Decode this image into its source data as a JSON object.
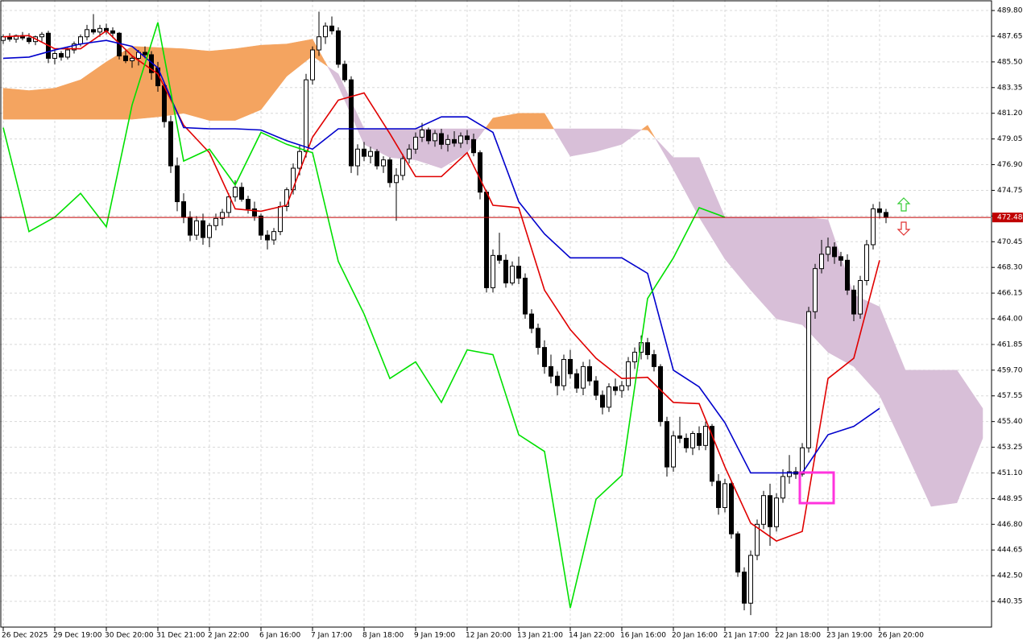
{
  "chart_data": {
    "type": "candlestick",
    "xlim": [
      -0.5,
      153.25
    ],
    "ylim": [
      438.13,
      490.68
    ],
    "grid": true,
    "yticks": [
      {
        "value": 489.8,
        "label": "489.80"
      },
      487.65,
      {
        "value": 485.5,
        "label": "485.50"
      },
      483.35,
      {
        "value": 481.2,
        "label": "481.20"
      },
      479.05,
      {
        "value": 476.9,
        "label": "476.90"
      },
      474.75,
      {
        "value": 472.6,
        "label": "472.60"
      },
      470.45,
      {
        "value": 468.3,
        "label": "468.30"
      },
      466.15,
      {
        "value": 464,
        "label": "464.00"
      },
      461.85,
      {
        "value": 459.7,
        "label": "459.70"
      },
      457.55,
      {
        "value": 455.4,
        "label": "455.40"
      },
      453.25,
      {
        "value": 451.1,
        "label": "451.10"
      },
      448.95,
      {
        "value": 446.8,
        "label": "446.80"
      },
      444.65,
      {
        "value": 442.5,
        "label": "442.50"
      },
      440.35
    ],
    "xticks": [
      {
        "value": 0,
        "label": "26 Dec 2025"
      },
      {
        "value": 8,
        "label": "29 Dec 19:00"
      },
      {
        "value": 16,
        "label": "30 Dec 20:00"
      },
      {
        "value": 24,
        "label": "31 Dec 21:00"
      },
      {
        "value": 32,
        "label": "2 Jan 22:00"
      },
      {
        "value": 40,
        "label": "6 Jan 16:00"
      },
      {
        "value": 48,
        "label": "7 Jan 17:00"
      },
      {
        "value": 56,
        "label": "8 Jan 18:00"
      },
      {
        "value": 64,
        "label": "9 Jan 19:00"
      },
      {
        "value": 72,
        "label": "12 Jan 20:00"
      },
      {
        "value": 80,
        "label": "13 Jan 21:00"
      },
      {
        "value": 88,
        "label": "14 Jan 22:00"
      },
      {
        "value": 96,
        "label": "16 Jan 16:00"
      },
      {
        "value": 104,
        "label": "20 Jan 16:00"
      },
      {
        "value": 112,
        "label": "21 Jan 17:00"
      },
      {
        "value": 120,
        "label": "22 Jan 18:00"
      },
      {
        "value": 128,
        "label": "23 Jan 19:00"
      },
      {
        "value": 136,
        "label": "26 Jan 20:00"
      }
    ],
    "last_price": 472.48,
    "last_price_color": "#c00000",
    "candles": {
      "up_color": "#ffffff",
      "down_color": "#000000",
      "outline": "#000000",
      "open": [
        487.3,
        487.6,
        487.4,
        487.7,
        487.5,
        487.2,
        487.6,
        487.9,
        485.8,
        486.2,
        485.9,
        486.5,
        487.0,
        487.6,
        488.2,
        488.0,
        488.3,
        488.1,
        487.9,
        486.0,
        485.6,
        485.8,
        486.3,
        486.1,
        485.0,
        483.5,
        480.5,
        476.8,
        473.8,
        472.5,
        471.0,
        472.2,
        470.8,
        471.8,
        472.4,
        472.9,
        474.2,
        475.0,
        474.0,
        473.2,
        472.6,
        471.0,
        470.6,
        471.3,
        473.4,
        474.8,
        476.6,
        478.0,
        484.0,
        486.5,
        487.6,
        488.5,
        488.1,
        485.3,
        484.0,
        476.8,
        478.2,
        477.6,
        478.0,
        476.8,
        477.3,
        475.4,
        476.0,
        477.4,
        478.2,
        479.2,
        479.8,
        478.9,
        479.5,
        478.6,
        479.0,
        478.7,
        479.3,
        479.0,
        477.9,
        474.6,
        466.6,
        469.3,
        468.9,
        467.0,
        468.4,
        467.4,
        464.4,
        463.2,
        461.6,
        460.0,
        459.2,
        458.4,
        460.6,
        459.4,
        458.2,
        460.0,
        458.8,
        457.6,
        456.6,
        458.3,
        458.0,
        458.4,
        460.4,
        461.2,
        462.0,
        461.0,
        460.0,
        455.4,
        451.6,
        454.2,
        454.0,
        453.2,
        454.4,
        453.4,
        455.0,
        450.4,
        448.2,
        450.2,
        446.0,
        442.8,
        440.2,
        444.2,
        446.8,
        449.2,
        446.6,
        449.0,
        450.8,
        451.2,
        451.0,
        453.2,
        464.6,
        468.2,
        469.4,
        470.0,
        469.2,
        468.9,
        466.4,
        464.4,
        467.2,
        470.2,
        473.2,
        472.9
      ],
      "high": [
        487.8,
        487.9,
        487.8,
        488.0,
        487.9,
        487.7,
        488.0,
        488.1,
        486.5,
        486.4,
        486.7,
        487.2,
        487.8,
        488.6,
        489.5,
        488.6,
        488.7,
        488.4,
        488.0,
        486.6,
        486.0,
        486.5,
        486.8,
        486.4,
        485.5,
        483.8,
        481.0,
        477.5,
        474.5,
        473.0,
        472.6,
        472.8,
        472.0,
        472.8,
        473.2,
        474.5,
        475.6,
        475.4,
        474.3,
        473.8,
        472.8,
        471.4,
        471.6,
        473.8,
        475.0,
        477.0,
        478.5,
        484.5,
        486.8,
        489.7,
        488.8,
        489.3,
        488.4,
        485.6,
        484.3,
        478.6,
        478.8,
        478.4,
        478.2,
        477.6,
        477.5,
        476.6,
        477.8,
        478.6,
        479.6,
        480.4,
        480.0,
        479.8,
        479.9,
        479.4,
        479.7,
        479.6,
        479.8,
        479.5,
        478.1,
        474.8,
        469.8,
        471.2,
        469.4,
        468.8,
        469.2,
        467.8,
        464.8,
        463.6,
        462.2,
        461.0,
        459.6,
        461.0,
        461.4,
        459.8,
        460.4,
        460.6,
        459.2,
        458.0,
        458.6,
        459.0,
        458.8,
        460.8,
        461.6,
        462.6,
        462.4,
        461.4,
        460.2,
        455.8,
        454.6,
        455.8,
        454.4,
        454.6,
        455.0,
        455.4,
        455.2,
        451.0,
        450.6,
        450.4,
        446.2,
        443.2,
        444.6,
        447.2,
        449.6,
        450.2,
        449.4,
        451.4,
        452.6,
        451.6,
        453.6,
        465.0,
        468.6,
        470.6,
        470.8,
        470.4,
        469.6,
        469.4,
        466.8,
        467.6,
        470.6,
        473.6,
        473.8,
        473.2
      ],
      "low": [
        487.0,
        487.2,
        487.1,
        487.3,
        487.0,
        486.9,
        487.2,
        485.4,
        485.3,
        485.6,
        485.7,
        486.2,
        486.8,
        487.3,
        487.8,
        487.6,
        487.8,
        487.5,
        485.7,
        485.4,
        485.0,
        485.2,
        485.8,
        484.0,
        483.0,
        480.0,
        476.2,
        473.0,
        472.0,
        470.5,
        470.6,
        470.2,
        470.0,
        471.4,
        471.8,
        472.5,
        473.8,
        473.8,
        472.8,
        472.2,
        470.6,
        469.8,
        470.2,
        471.0,
        473.0,
        474.4,
        476.0,
        477.5,
        483.6,
        486.0,
        487.0,
        487.8,
        485.0,
        483.8,
        476.2,
        476.0,
        477.2,
        477.0,
        476.5,
        476.2,
        475.0,
        472.2,
        475.6,
        477.0,
        477.8,
        478.8,
        478.6,
        478.4,
        478.2,
        478.0,
        478.4,
        478.3,
        478.6,
        477.6,
        474.0,
        466.2,
        466.2,
        468.6,
        466.6,
        466.8,
        466.9,
        464.0,
        462.8,
        461.0,
        459.4,
        458.6,
        457.6,
        458.0,
        459.0,
        457.8,
        457.6,
        458.4,
        457.2,
        456.0,
        456.2,
        457.6,
        457.4,
        458.0,
        459.8,
        460.6,
        460.6,
        459.6,
        455.0,
        450.8,
        451.2,
        453.6,
        452.8,
        452.6,
        453.0,
        453.0,
        450.0,
        447.6,
        447.8,
        445.6,
        442.4,
        439.6,
        439.2,
        443.8,
        446.4,
        445.0,
        446.2,
        448.6,
        450.2,
        450.6,
        450.8,
        452.8,
        464.0,
        467.8,
        468.8,
        468.6,
        468.4,
        466.0,
        463.8,
        464.0,
        466.8,
        469.8,
        472.4,
        472.0
      ],
      "close": [
        487.6,
        487.4,
        487.7,
        487.5,
        487.2,
        487.6,
        487.8,
        485.8,
        486.2,
        485.9,
        486.5,
        487.0,
        487.6,
        488.2,
        488.0,
        488.3,
        488.1,
        487.9,
        486.0,
        485.6,
        485.8,
        486.3,
        486.1,
        484.6,
        483.5,
        480.5,
        476.8,
        473.8,
        472.5,
        471.0,
        472.2,
        470.8,
        471.8,
        472.4,
        472.9,
        474.2,
        475.0,
        474.0,
        473.2,
        472.6,
        471.0,
        470.6,
        471.3,
        473.4,
        474.8,
        476.6,
        478.0,
        484.0,
        486.5,
        487.6,
        488.5,
        488.1,
        485.3,
        484.0,
        476.8,
        478.2,
        477.6,
        478.0,
        476.8,
        477.3,
        475.4,
        476.0,
        477.4,
        478.2,
        479.2,
        479.8,
        478.9,
        479.5,
        478.6,
        479.0,
        478.7,
        479.3,
        479.0,
        477.9,
        474.6,
        466.6,
        469.3,
        468.9,
        467.0,
        468.4,
        467.4,
        464.4,
        463.2,
        461.6,
        460.0,
        459.2,
        458.4,
        460.6,
        459.4,
        458.2,
        460.0,
        458.8,
        457.6,
        456.6,
        458.3,
        458.0,
        458.4,
        460.4,
        461.2,
        462.0,
        461.0,
        460.0,
        455.4,
        451.6,
        454.2,
        454.0,
        453.2,
        454.4,
        453.4,
        455.0,
        450.4,
        448.2,
        450.2,
        446.0,
        442.8,
        440.2,
        444.2,
        446.8,
        449.2,
        446.6,
        449.0,
        450.8,
        451.2,
        451.0,
        453.2,
        464.6,
        468.2,
        469.4,
        470.0,
        469.2,
        468.9,
        466.4,
        464.4,
        467.2,
        470.2,
        473.2,
        472.9,
        472.48
      ]
    },
    "cloud": {
      "bull_color": "#f4a460",
      "bear_color": "#d8bfd8",
      "x": [
        0,
        4,
        8,
        12,
        16,
        20,
        24,
        28,
        32,
        36,
        40,
        44,
        48,
        52,
        56,
        60,
        64,
        68,
        72,
        76,
        80,
        84,
        88,
        92,
        96,
        100,
        104,
        108,
        112,
        116,
        120,
        124,
        128,
        132,
        136,
        140,
        144,
        148,
        152
      ],
      "span_a": [
        483.3,
        483.1,
        483.3,
        484.0,
        485.5,
        486.8,
        486.7,
        486.6,
        486.4,
        486.6,
        486.9,
        487.0,
        487.4,
        483.5,
        478.6,
        477.5,
        477.3,
        476.6,
        477.9,
        480.8,
        481.2,
        481.2,
        477.6,
        478.0,
        478.6,
        480.2,
        476.5,
        472.5,
        469.0,
        466.4,
        464.0,
        463.5,
        461.2,
        460.0,
        457.6,
        453.0,
        448.3,
        448.6,
        454.0
      ],
      "span_b": [
        480.7,
        480.7,
        480.7,
        480.7,
        480.7,
        480.7,
        480.9,
        481.2,
        480.6,
        480.6,
        481.5,
        484.3,
        486.0,
        484.5,
        479.9,
        479.9,
        479.9,
        479.9,
        479.9,
        479.9,
        479.9,
        479.9,
        479.9,
        479.9,
        479.9,
        479.8,
        477.5,
        477.5,
        472.5,
        472.5,
        472.5,
        472.5,
        472.3,
        466.0,
        465.0,
        459.7,
        459.7,
        459.7,
        456.5
      ]
    },
    "lines": [
      {
        "color": "#e00000",
        "x": [
          0,
          4,
          8,
          12,
          16,
          20,
          24,
          28,
          32,
          36,
          40,
          44,
          48,
          52,
          56,
          60,
          64,
          68,
          72,
          76,
          80,
          84,
          88,
          92,
          96,
          100,
          104,
          108,
          112,
          116,
          120,
          124,
          128,
          132,
          136
        ],
        "values": [
          487.6,
          487.7,
          486.6,
          486.6,
          488.1,
          486.0,
          484.5,
          480.2,
          477.9,
          473.2,
          473.0,
          473.5,
          479.2,
          482.3,
          482.9,
          479.5,
          475.9,
          475.9,
          477.9,
          473.5,
          473.3,
          466.4,
          463.1,
          460.7,
          459.0,
          459.1,
          457.0,
          456.9,
          451.6,
          446.9,
          445.4,
          446.2,
          459.0,
          460.7,
          468.9
        ]
      },
      {
        "color": "#0000cc",
        "x": [
          0,
          4,
          8,
          12,
          16,
          20,
          24,
          28,
          32,
          36,
          40,
          44,
          48,
          52,
          56,
          60,
          64,
          68,
          72,
          76,
          80,
          84,
          88,
          92,
          96,
          100,
          104,
          108,
          112,
          116,
          120,
          124,
          128,
          132,
          136
        ],
        "values": [
          485.8,
          485.9,
          486.5,
          487.0,
          487.3,
          486.8,
          485.0,
          480.0,
          479.9,
          479.9,
          479.8,
          478.9,
          478.2,
          479.9,
          479.9,
          479.9,
          479.9,
          480.9,
          480.9,
          479.6,
          473.8,
          471.1,
          469.1,
          469.1,
          469.1,
          467.8,
          459.7,
          458.3,
          455.3,
          451.1,
          451.1,
          451.1,
          454.3,
          455.0,
          456.5
        ]
      },
      {
        "color": "#00e000",
        "x": [
          0,
          4,
          8,
          12,
          16,
          20,
          24,
          28,
          32,
          36,
          40,
          44,
          48,
          52,
          56,
          60,
          64,
          68,
          72,
          76,
          80,
          84,
          88,
          92,
          96,
          100,
          104,
          108,
          112
        ],
        "values": [
          480.0,
          471.3,
          472.5,
          474.5,
          471.7,
          481.9,
          488.8,
          477.2,
          478.2,
          475.2,
          479.6,
          478.6,
          477.9,
          468.8,
          464.4,
          459.0,
          460.4,
          457.0,
          461.4,
          461.0,
          454.3,
          452.9,
          439.8,
          448.9,
          450.9,
          465.7,
          469.1,
          473.3,
          472.5
        ]
      }
    ]
  }
}
